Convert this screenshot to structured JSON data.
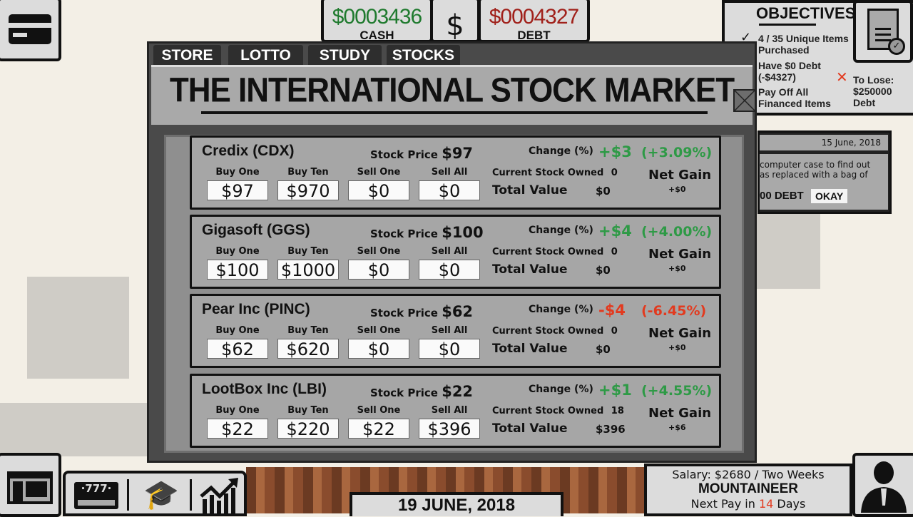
{
  "hud": {
    "cash_value": "$0003436",
    "cash_label": "CASH",
    "currency_symbol": "$",
    "debt_value": "$0004327",
    "debt_label": "DEBT"
  },
  "colors": {
    "cash": "#1f7a2e",
    "debt": "#a0201a",
    "positive": "#2e9a46",
    "negative": "#e23a1f"
  },
  "modal": {
    "tabs": [
      {
        "label": "STORE"
      },
      {
        "label": "LOTTO"
      },
      {
        "label": "STUDY"
      },
      {
        "label": "STOCKS"
      }
    ],
    "active_tab": "STOCKS",
    "title": "THE INTERNATIONAL STOCK MARKET",
    "labels": {
      "stock_price": "Stock Price",
      "change": "Change (%)",
      "buy_one": "Buy One",
      "buy_ten": "Buy Ten",
      "sell_one": "Sell One",
      "sell_all": "Sell All",
      "owned": "Current Stock Owned",
      "total_value": "Total Value",
      "net_gain": "Net Gain"
    },
    "stocks": [
      {
        "name": "Credix (CDX)",
        "price": "$97",
        "change": "+$3",
        "change_pct": "(+3.09%)",
        "direction": "up",
        "buy_one": "$97",
        "buy_ten": "$970",
        "sell_one": "$0",
        "sell_all": "$0",
        "owned": "0",
        "total_value": "$0",
        "net_gain": "+$0"
      },
      {
        "name": "Gigasoft (GGS)",
        "price": "$100",
        "change": "+$4",
        "change_pct": "(+4.00%)",
        "direction": "up",
        "buy_one": "$100",
        "buy_ten": "$1000",
        "sell_one": "$0",
        "sell_all": "$0",
        "owned": "0",
        "total_value": "$0",
        "net_gain": "+$0"
      },
      {
        "name": "Pear Inc (PINC)",
        "price": "$62",
        "change": "-$4",
        "change_pct": "(-6.45%)",
        "direction": "down",
        "buy_one": "$62",
        "buy_ten": "$620",
        "sell_one": "$0",
        "sell_all": "$0",
        "owned": "0",
        "total_value": "$0",
        "net_gain": "+$0"
      },
      {
        "name": "LootBox Inc (LBI)",
        "price": "$22",
        "change": "+$1",
        "change_pct": "(+4.55%)",
        "direction": "up",
        "buy_one": "$22",
        "buy_ten": "$220",
        "sell_one": "$22",
        "sell_all": "$396",
        "owned": "18",
        "total_value": "$396",
        "net_gain": "+$6"
      }
    ]
  },
  "objectives": {
    "title": "OBJECTIVES",
    "items": [
      {
        "text": "4 / 35 Unique Items Purchased",
        "done": true
      },
      {
        "text": "Have $0 Debt (-$4327)",
        "done": false
      },
      {
        "text": "Pay Off All Financed Items",
        "done": false
      }
    ],
    "lose": "To Lose: $250000 Debt"
  },
  "notification": {
    "date": "15 June, 2018",
    "text_line1": "computer case to find out",
    "text_line2": "as replaced with a bag of",
    "debt_text": "00 DEBT",
    "okay_label": "OKAY"
  },
  "toolbar": {
    "lotto_icon_text": "·777·"
  },
  "date": "19 JUNE, 2018",
  "salary": {
    "line": "Salary: $2680 / Two Weeks",
    "job": "MOUNTAINEER",
    "next_pay_prefix": "Next Pay in",
    "next_pay_days": "14",
    "next_pay_suffix": "Days"
  }
}
